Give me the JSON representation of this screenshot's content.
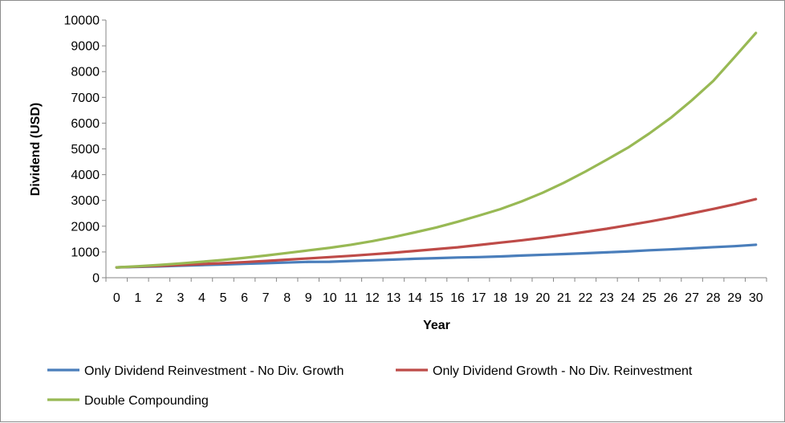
{
  "chart_data": {
    "type": "line",
    "title": "",
    "xlabel": "Year",
    "ylabel": "Dividend (USD)",
    "ylim": [
      0,
      10000
    ],
    "yticks": [
      0,
      1000,
      2000,
      3000,
      4000,
      5000,
      6000,
      7000,
      8000,
      9000,
      10000
    ],
    "grid": false,
    "legend_position": "bottom",
    "x": [
      "0",
      "1",
      "2",
      "3",
      "4",
      "5",
      "6",
      "7",
      "8",
      "9",
      "10",
      "11",
      "12",
      "13",
      "14",
      "15",
      "16",
      "17",
      "18",
      "19",
      "20",
      "21",
      "22",
      "23",
      "24",
      "25",
      "26",
      "27",
      "28",
      "29",
      "30"
    ],
    "series": [
      {
        "name": "Only Dividend Reinvestment - No Div. Growth",
        "color": "#4a7ebb",
        "values": [
          400,
          420,
          440,
          465,
          490,
          515,
          540,
          565,
          590,
          615,
          620,
          650,
          675,
          705,
          735,
          760,
          785,
          800,
          825,
          860,
          890,
          920,
          950,
          985,
          1020,
          1065,
          1100,
          1140,
          1185,
          1225,
          1280
        ]
      },
      {
        "name": "Only Dividend Growth - No Div. Reinvestment",
        "color": "#be4b48",
        "values": [
          400,
          430,
          460,
          495,
          530,
          565,
          605,
          650,
          700,
          750,
          800,
          850,
          910,
          970,
          1040,
          1110,
          1180,
          1270,
          1360,
          1450,
          1550,
          1660,
          1780,
          1900,
          2040,
          2180,
          2330,
          2500,
          2670,
          2850,
          3050
        ]
      },
      {
        "name": "Double Compounding",
        "color": "#98b954",
        "values": [
          400,
          445,
          495,
          555,
          620,
          690,
          770,
          860,
          960,
          1060,
          1160,
          1280,
          1420,
          1580,
          1760,
          1950,
          2170,
          2410,
          2660,
          2960,
          3300,
          3690,
          4120,
          4580,
          5050,
          5600,
          6200,
          6890,
          7640,
          8560,
          9500
        ]
      }
    ]
  }
}
